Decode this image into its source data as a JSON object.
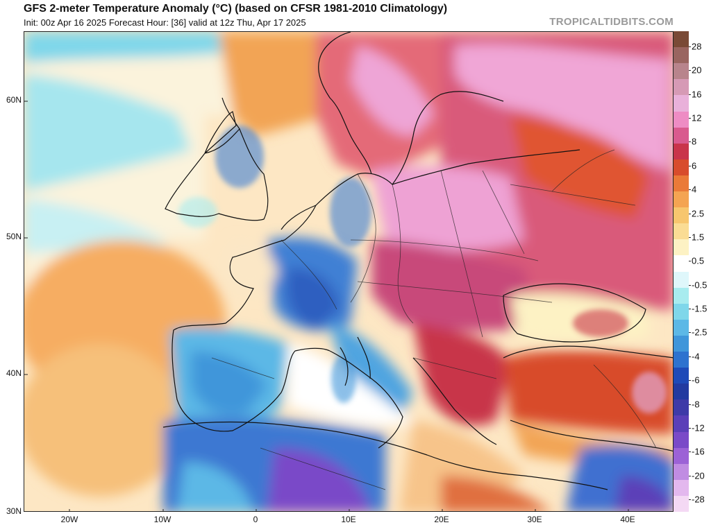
{
  "header": {
    "title": "GFS 2-meter Temperature Anomaly (°C) (based on CFSR 1981-2010 Climatology)",
    "subtitle": "Init: 00z Apr 16 2025   Forecast Hour: [36]   valid at 12z Thu, Apr 17 2025",
    "brand": "TROPICALTIDBITS.COM"
  },
  "axes": {
    "lat_labels": [
      "60N",
      "50N",
      "40N",
      "30N"
    ],
    "lon_labels": [
      "20W",
      "10W",
      "0",
      "10E",
      "20E",
      "30E",
      "40E"
    ]
  },
  "colorbar": {
    "labels": [
      "28",
      "20",
      "16",
      "12",
      "8",
      "6",
      "4",
      "2.5",
      "1.5",
      "0.5",
      "-0.5",
      "-1.5",
      "-2.5",
      "-4",
      "-6",
      "-8",
      "-12",
      "-16",
      "-20",
      "-28"
    ],
    "colors": [
      "#7a4a36",
      "#9a6560",
      "#b8848c",
      "#d69ab5",
      "#e9b1da",
      "#ee8cc4",
      "#d95a8e",
      "#c9344a",
      "#d84c2c",
      "#ea7a38",
      "#f4a452",
      "#f7c66e",
      "#fadc94",
      "#fdf2c4",
      "#ffffff",
      "#dff7fb",
      "#a8ecef",
      "#7fd7ea",
      "#5cb8e6",
      "#3f96da",
      "#2d72cf",
      "#1e4ab8",
      "#223aa0",
      "#3e3aa8",
      "#5b3fb8",
      "#7a4ac8",
      "#9c62d6",
      "#c08ce2",
      "#e3b8ee",
      "#f4d9f4"
    ]
  }
}
